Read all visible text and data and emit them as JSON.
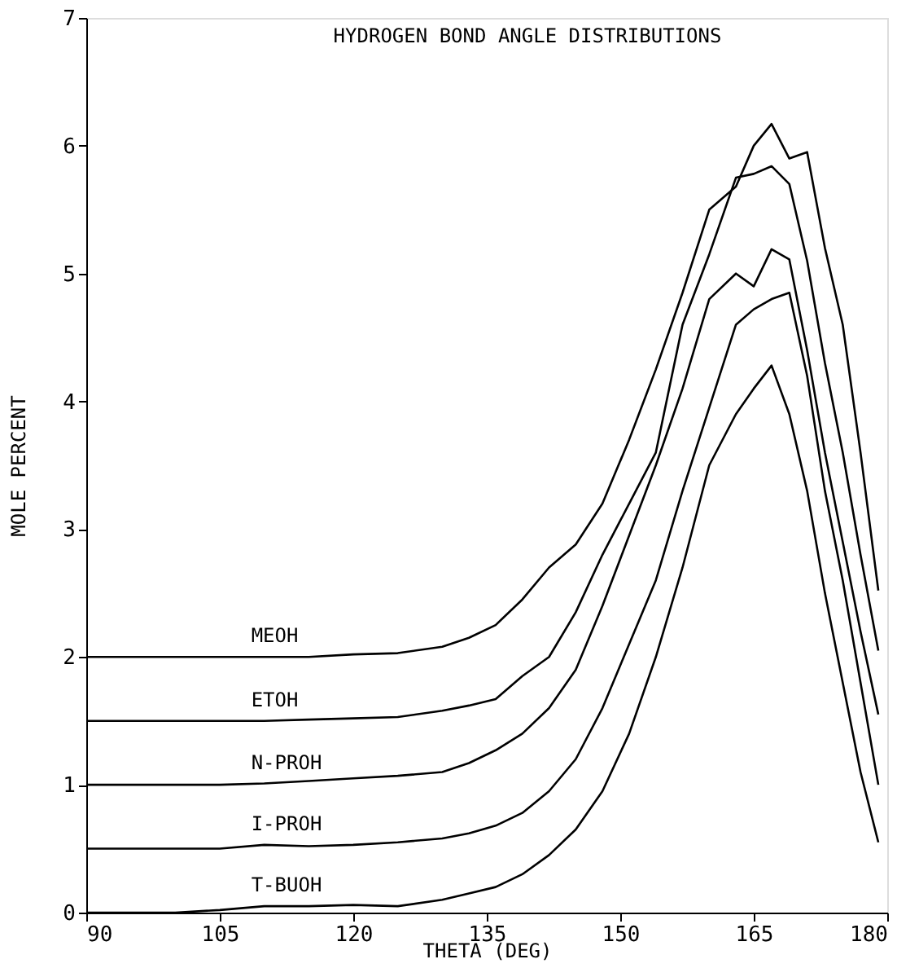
{
  "chart_data": {
    "type": "line",
    "title": "HYDROGEN BOND ANGLE DISTRIBUTIONS",
    "xlabel": "THETA (DEG)",
    "ylabel": "MOLE PERCENT",
    "x": [
      90,
      95,
      100,
      105,
      110,
      115,
      120,
      125,
      130,
      133,
      136,
      139,
      142,
      145,
      148,
      151,
      154,
      157,
      160,
      163,
      165,
      167,
      169,
      171,
      173,
      175,
      177,
      179
    ],
    "series": [
      {
        "name": "MEOH",
        "color": "#000000",
        "values": [
          2,
          2,
          2,
          2,
          2,
          2,
          2.02,
          2.03,
          2.08,
          2.15,
          2.25,
          2.45,
          2.7,
          2.88,
          3.2,
          3.7,
          4.25,
          4.85,
          5.5,
          5.68,
          6.0,
          6.17,
          5.9,
          5.95,
          5.2,
          4.6,
          3.6,
          2.52
        ]
      },
      {
        "name": "ETOH",
        "color": "#000000",
        "values": [
          1.5,
          1.5,
          1.5,
          1.5,
          1.5,
          1.51,
          1.52,
          1.53,
          1.58,
          1.62,
          1.67,
          1.85,
          2.0,
          2.35,
          2.8,
          3.2,
          3.6,
          4.6,
          5.15,
          5.75,
          5.78,
          5.84,
          5.7,
          5.1,
          4.3,
          3.6,
          2.8,
          2.05
        ]
      },
      {
        "name": "N-PROH",
        "color": "#000000",
        "values": [
          1.0,
          1.0,
          1.0,
          1.0,
          1.01,
          1.03,
          1.05,
          1.07,
          1.1,
          1.17,
          1.27,
          1.4,
          1.6,
          1.9,
          2.4,
          2.95,
          3.5,
          4.1,
          4.8,
          5.0,
          4.9,
          5.19,
          5.11,
          4.4,
          3.6,
          2.9,
          2.2,
          1.55
        ]
      },
      {
        "name": "I-PROH",
        "color": "#000000",
        "values": [
          0.5,
          0.5,
          0.5,
          0.5,
          0.53,
          0.52,
          0.53,
          0.55,
          0.58,
          0.62,
          0.68,
          0.78,
          0.95,
          1.2,
          1.6,
          2.1,
          2.6,
          3.3,
          3.95,
          4.6,
          4.72,
          4.8,
          4.85,
          4.2,
          3.3,
          2.6,
          1.8,
          1.0
        ]
      },
      {
        "name": "T-BUOH",
        "color": "#000000",
        "values": [
          0,
          0,
          0,
          0.02,
          0.05,
          0.05,
          0.06,
          0.05,
          0.1,
          0.15,
          0.2,
          0.3,
          0.45,
          0.65,
          0.95,
          1.4,
          2.0,
          2.7,
          3.5,
          3.9,
          4.1,
          4.28,
          3.9,
          3.3,
          2.5,
          1.8,
          1.1,
          0.55
        ]
      }
    ],
    "xlim": [
      90,
      180
    ],
    "xticks": [
      90,
      105,
      120,
      135,
      150,
      165,
      180
    ],
    "ylim": [
      0,
      7
    ],
    "yticks": [
      0,
      1,
      2,
      3,
      4,
      5,
      6,
      7
    ],
    "grid": false,
    "marker": "none",
    "line_style": "solid"
  }
}
